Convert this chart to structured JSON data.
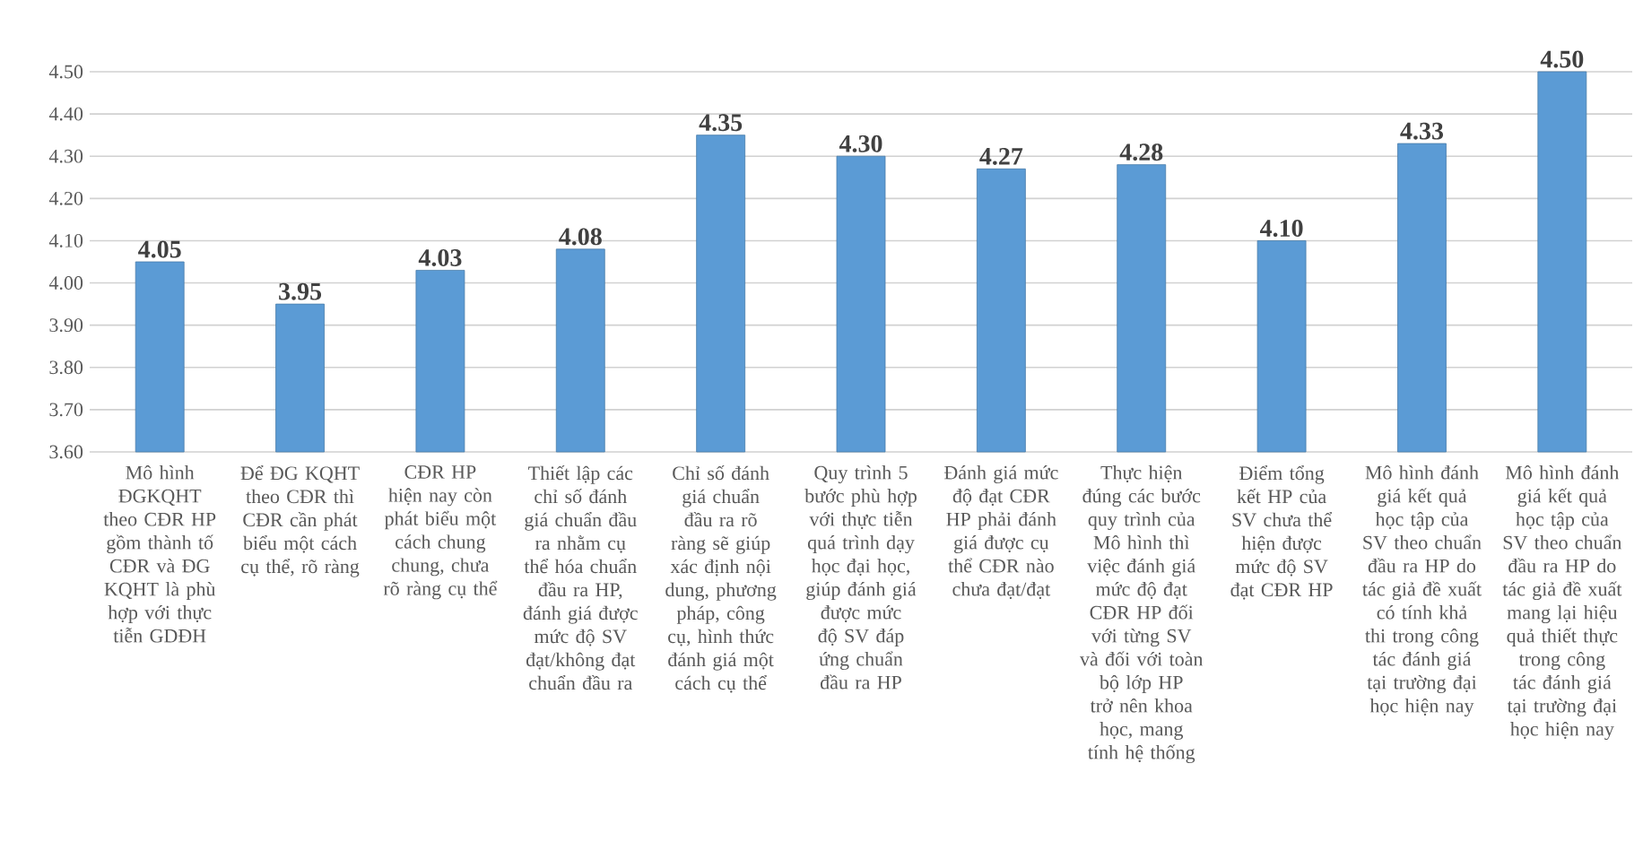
{
  "chart_data": {
    "type": "bar",
    "categories": [
      "Mô hình ĐGKQHT theo CĐR HP gồm thành tố CĐR và ĐG KQHT là phù hợp với thực tiễn GDĐH",
      "Để ĐG KQHT theo CĐR thì CĐR cần phát biểu một cách cụ thể, rõ ràng",
      "CĐR HP hiện nay còn phát biểu một cách chung chung, chưa rõ ràng cụ thể",
      "Thiết lập các chỉ số đánh giá chuẩn đầu ra nhằm cụ thể hóa chuẩn đầu ra HP, đánh giá được mức độ SV đạt/không đạt chuẩn đầu ra",
      "Chỉ số đánh giá chuẩn đầu ra rõ ràng sẽ giúp xác định nội dung, phương pháp, công cụ, hình thức đánh giá một cách cụ thể",
      "Quy trình 5 bước phù hợp với thực tiễn quá trình dạy học đại học, giúp đánh giá được mức độ SV đáp ứng chuẩn đầu ra HP",
      "Đánh giá mức độ đạt CĐR HP phải đánh giá được cụ thể CĐR nào chưa đạt/đạt",
      "Thực hiện đúng các bước quy trình của Mô hình thì việc đánh giá mức độ đạt CĐR HP đối với từng SV và đối với toàn bộ lớp HP trở nên khoa học, mang tính hệ thống",
      "Điểm tổng kết HP của SV chưa thể hiện được mức độ SV đạt CĐR HP",
      "Mô hình đánh giá kết quả học tập của SV theo chuẩn đầu ra HP do tác giả đề xuất có tính khả thi trong công tác đánh giá tại trường đại học hiện nay",
      "Mô hình đánh giá kết quả học tập của SV theo chuẩn đầu ra HP do tác giả đề xuất mang lại hiệu quả thiết thực trong công tác đánh giá tại trường đại học hiện nay"
    ],
    "values": [
      4.05,
      3.95,
      4.03,
      4.08,
      4.35,
      4.3,
      4.27,
      4.28,
      4.1,
      4.33,
      4.5
    ],
    "value_labels": [
      "4.05",
      "3.95",
      "4.03",
      "4.08",
      "4.35",
      "4.30",
      "4.27",
      "4.28",
      "4.10",
      "4.33",
      "4.50"
    ],
    "color": "#5b9bd5",
    "ylim": [
      3.6,
      4.5
    ],
    "yticks": [
      {
        "value": 3.6,
        "label": "3.60"
      },
      {
        "value": 3.7,
        "label": "3.70"
      },
      {
        "value": 3.8,
        "label": "3.80"
      },
      {
        "value": 3.9,
        "label": "3.90"
      },
      {
        "value": 4.0,
        "label": "4.00"
      },
      {
        "value": 4.1,
        "label": "4.10"
      },
      {
        "value": 4.2,
        "label": "4.20"
      },
      {
        "value": 4.3,
        "label": "4.30"
      },
      {
        "value": 4.4,
        "label": "4.40"
      },
      {
        "value": 4.5,
        "label": "4.50"
      }
    ],
    "grid": "y"
  }
}
